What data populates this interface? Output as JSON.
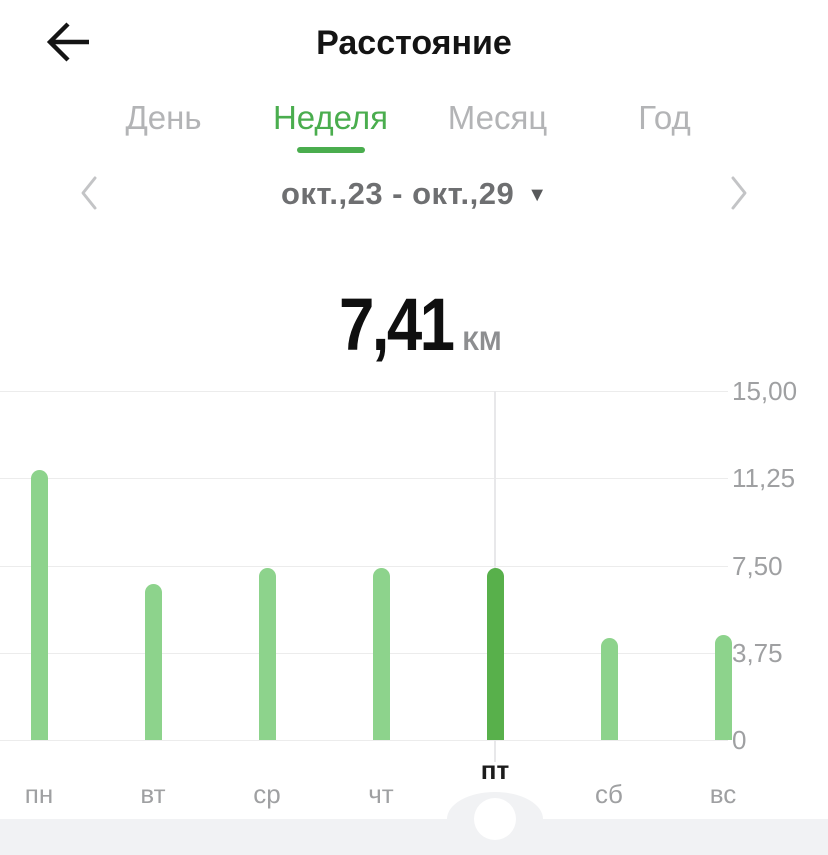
{
  "header": {
    "title": "Расстояние"
  },
  "tabs": {
    "items": [
      "День",
      "Неделя",
      "Месяц",
      "Год"
    ],
    "selected": "Неделя"
  },
  "date_nav": {
    "label": "окт.,23 - окт.,29",
    "dropdown_icon": "▼"
  },
  "summary": {
    "value": "7,41",
    "unit": "КМ"
  },
  "chart_data": {
    "type": "bar",
    "categories": [
      "пн",
      "вт",
      "ср",
      "чт",
      "пт",
      "сб",
      "вс"
    ],
    "values": [
      11.6,
      6.7,
      7.4,
      7.4,
      7.41,
      4.4,
      4.5
    ],
    "unit": "КМ",
    "selected_category": "пт",
    "selected_value": "7,41",
    "ylim": [
      0,
      15
    ],
    "ytick_labels": [
      "15,00",
      "11,25",
      "7,50",
      "3,75",
      "0"
    ],
    "yaxis_side": "right",
    "grid": "horizontal",
    "legend": "none",
    "bar_color": "#8dd38c",
    "selected_bar_color": "#58b04b"
  },
  "colors": {
    "accent_green": "#4aad4e",
    "bar_green": "#8dd38c",
    "bar_selected_green": "#58b04b",
    "inactive_tab_gray": "#b3b4b6",
    "axis_label_gray": "#9fa0a2",
    "bottom_band_gray": "#f1f2f4"
  },
  "icons": {
    "back": "arrow-left",
    "prev": "chevron-left",
    "next": "chevron-right",
    "dropdown": "triangle-down"
  }
}
